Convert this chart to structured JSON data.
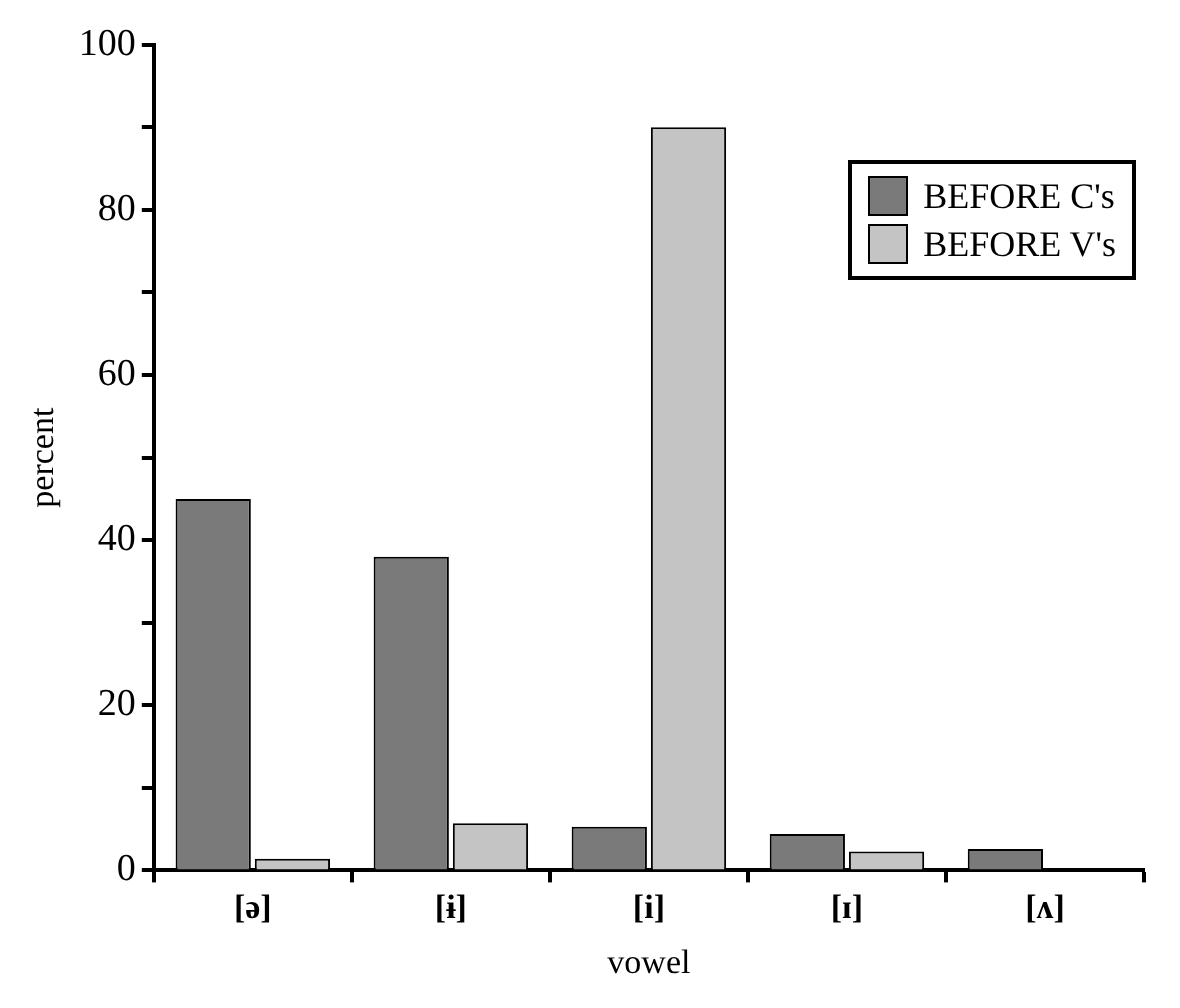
{
  "chart_data": {
    "type": "bar",
    "xlabel": "vowel",
    "ylabel": "percent",
    "categories": [
      "[ə]",
      "[ɨ]",
      "[i]",
      "[ɪ]",
      "[ʌ]"
    ],
    "series": [
      {
        "name": "BEFORE C's",
        "color": "#7a7a7a",
        "values": [
          45,
          38,
          5.3,
          4.4,
          2.6
        ]
      },
      {
        "name": "BEFORE V's",
        "color": "#c4c4c4",
        "values": [
          1.4,
          5.7,
          90,
          2.3,
          0
        ]
      }
    ],
    "ylim": [
      0,
      100
    ],
    "yticks": [
      0,
      {
        "value": 10,
        "label": null
      },
      20,
      {
        "value": 30,
        "label": null
      },
      40,
      {
        "value": 50,
        "label": null
      },
      60,
      {
        "value": 70,
        "label": null
      },
      80,
      {
        "value": 90,
        "label": null
      },
      100
    ],
    "grid": false,
    "legend": "top right"
  }
}
